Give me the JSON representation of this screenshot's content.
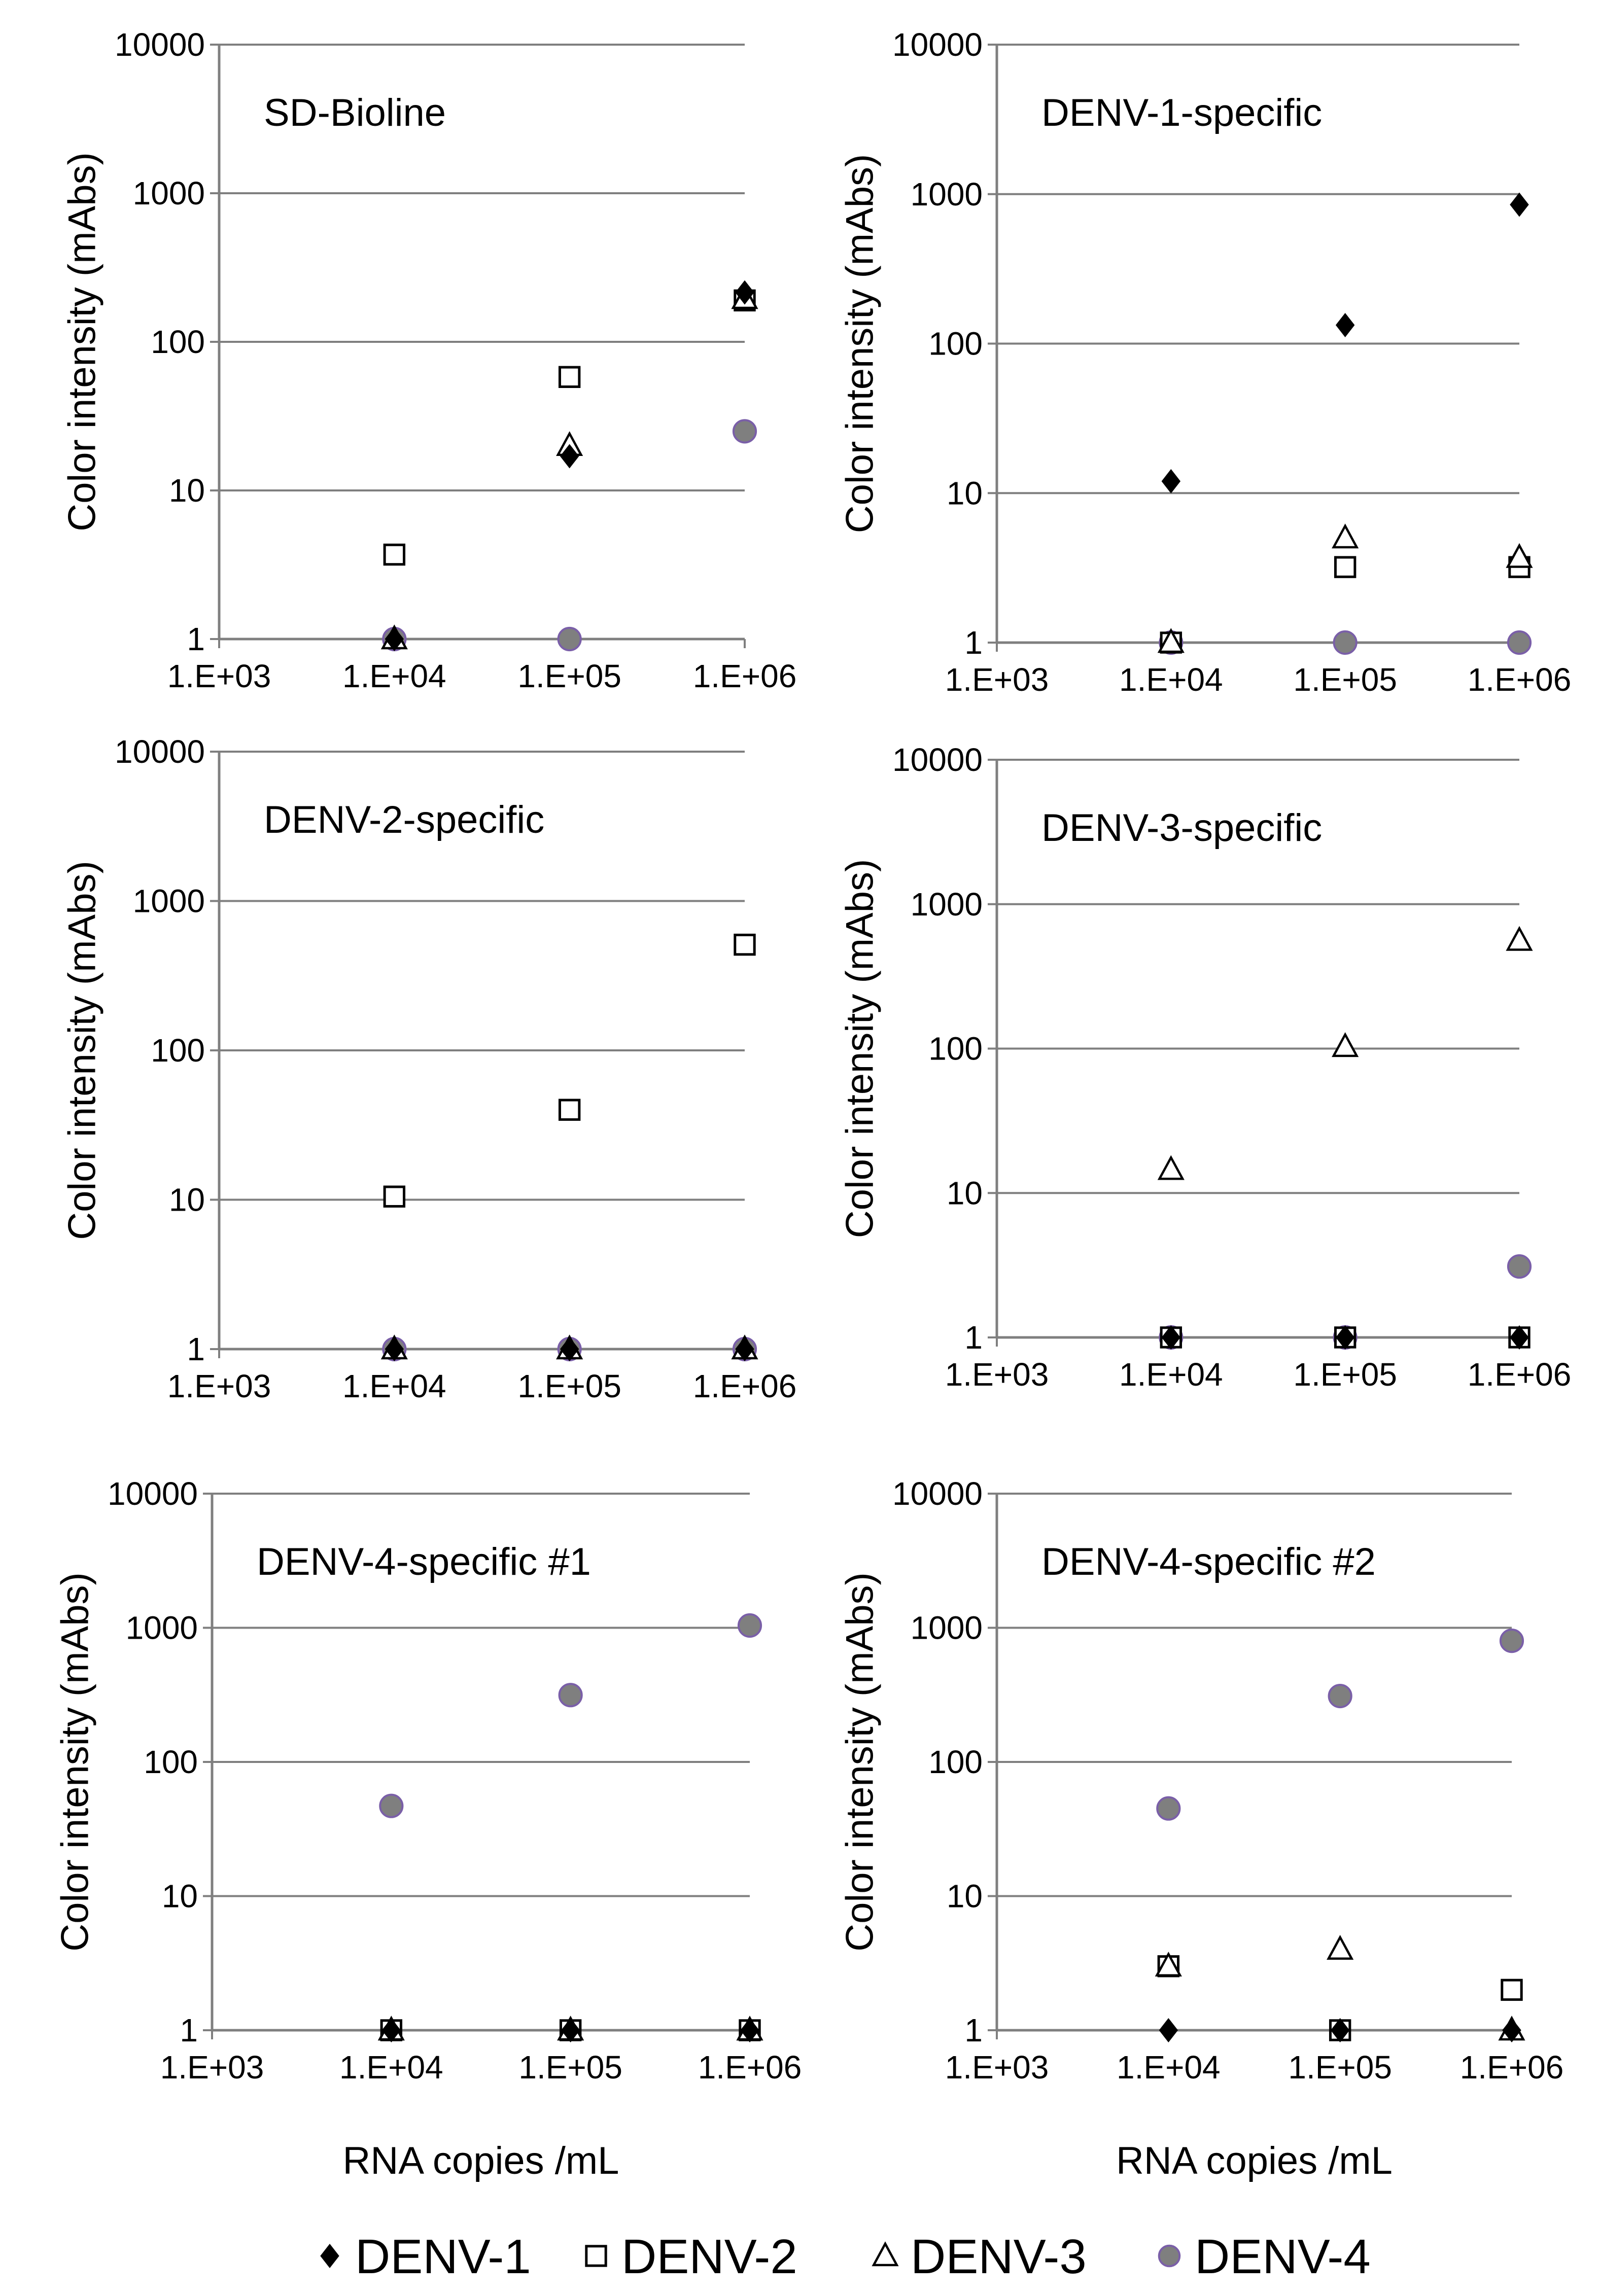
{
  "colors": {
    "axis": "#7f7f7f",
    "grid": "#7f7f7f",
    "denv4_fill": "#7f7f7f",
    "denv4_stroke": "#7a5fa8",
    "marker": "#000000"
  },
  "chart_data": [
    {
      "type": "scatter",
      "title": "SD-Bioline",
      "ylabel": "Color intensity (mAbs)",
      "xlabel": "",
      "xscale": "log",
      "yscale": "log",
      "xlim": [
        1000,
        1000000
      ],
      "ylim": [
        1,
        10000
      ],
      "x_ticks": [
        "1.E+03",
        "1.E+04",
        "1.E+05",
        "1.E+06"
      ],
      "y_ticks": [
        "1",
        "10",
        "100",
        "1000",
        "10000"
      ],
      "x": [
        10000,
        100000,
        1000000
      ],
      "series": [
        {
          "name": "DENV-1",
          "values": [
            1,
            17,
            215
          ]
        },
        {
          "name": "DENV-2",
          "values": [
            3.7,
            58,
            190
          ]
        },
        {
          "name": "DENV-3",
          "values": [
            1,
            20,
            195
          ]
        },
        {
          "name": "DENV-4",
          "values": [
            1,
            1,
            25
          ]
        }
      ]
    },
    {
      "type": "scatter",
      "title": "DENV-1-specific",
      "ylabel": "Color intensity (mAbs)",
      "xlabel": "",
      "xscale": "log",
      "yscale": "log",
      "xlim": [
        1000,
        1000000
      ],
      "ylim": [
        1,
        10000
      ],
      "x_ticks": [
        "1.E+03",
        "1.E+04",
        "1.E+05",
        "1.E+06"
      ],
      "y_ticks": [
        "1",
        "10",
        "100",
        "1000",
        "10000"
      ],
      "x": [
        10000,
        100000,
        1000000
      ],
      "series": [
        {
          "name": "DENV-1",
          "values": [
            12,
            133,
            850
          ]
        },
        {
          "name": "DENV-2",
          "values": [
            1,
            3.2,
            3.2
          ]
        },
        {
          "name": "DENV-3",
          "values": [
            1,
            5,
            3.7
          ]
        },
        {
          "name": "DENV-4",
          "values": [
            1,
            1,
            1
          ]
        }
      ]
    },
    {
      "type": "scatter",
      "title": "DENV-2-specific",
      "ylabel": "Color intensity (mAbs)",
      "xlabel": "",
      "xscale": "log",
      "yscale": "log",
      "xlim": [
        1000,
        1000000
      ],
      "ylim": [
        1,
        10000
      ],
      "x_ticks": [
        "1.E+03",
        "1.E+04",
        "1.E+05",
        "1.E+06"
      ],
      "y_ticks": [
        "1",
        "10",
        "100",
        "1000",
        "10000"
      ],
      "x": [
        10000,
        100000,
        1000000
      ],
      "series": [
        {
          "name": "DENV-1",
          "values": [
            1,
            1,
            1
          ]
        },
        {
          "name": "DENV-2",
          "values": [
            10.5,
            40,
            510
          ]
        },
        {
          "name": "DENV-3",
          "values": [
            1,
            1,
            1
          ]
        },
        {
          "name": "DENV-4",
          "values": [
            1,
            1,
            1
          ]
        }
      ]
    },
    {
      "type": "scatter",
      "title": "DENV-3-specific",
      "ylabel": "Color intensity (mAbs)",
      "xlabel": "",
      "xscale": "log",
      "yscale": "log",
      "xlim": [
        1000,
        1000000
      ],
      "ylim": [
        1,
        10000
      ],
      "x_ticks": [
        "1.E+03",
        "1.E+04",
        "1.E+05",
        "1.E+06"
      ],
      "y_ticks": [
        "1",
        "10",
        "100",
        "1000",
        "10000"
      ],
      "x": [
        10000,
        100000,
        1000000
      ],
      "series": [
        {
          "name": "DENV-1",
          "values": [
            1,
            1,
            1
          ]
        },
        {
          "name": "DENV-2",
          "values": [
            1,
            1,
            1
          ]
        },
        {
          "name": "DENV-3",
          "values": [
            14.5,
            103,
            560
          ]
        },
        {
          "name": "DENV-4",
          "values": [
            1,
            1,
            3.1
          ]
        }
      ]
    },
    {
      "type": "scatter",
      "title": "DENV-4-specific #1",
      "ylabel": "Color intensity (mAbs)",
      "xlabel": "RNA copies /mL",
      "xscale": "log",
      "yscale": "log",
      "xlim": [
        1000,
        1000000
      ],
      "ylim": [
        1,
        10000
      ],
      "x_ticks": [
        "1.E+03",
        "1.E+04",
        "1.E+05",
        "1.E+06"
      ],
      "y_ticks": [
        "1",
        "10",
        "100",
        "1000",
        "10000"
      ],
      "x": [
        10000,
        100000,
        1000000
      ],
      "series": [
        {
          "name": "DENV-1",
          "values": [
            1,
            1,
            1
          ]
        },
        {
          "name": "DENV-2",
          "values": [
            1,
            1,
            1
          ]
        },
        {
          "name": "DENV-3",
          "values": [
            1,
            1,
            1
          ]
        },
        {
          "name": "DENV-4",
          "values": [
            47,
            315,
            1040
          ]
        }
      ]
    },
    {
      "type": "scatter",
      "title": "DENV-4-specific #2",
      "ylabel": "Color intensity (mAbs)",
      "xlabel": "RNA copies /mL",
      "xscale": "log",
      "yscale": "log",
      "xlim": [
        1000,
        1000000
      ],
      "ylim": [
        1,
        10000
      ],
      "x_ticks": [
        "1.E+03",
        "1.E+04",
        "1.E+05",
        "1.E+06"
      ],
      "y_ticks": [
        "1",
        "10",
        "100",
        "1000",
        "10000"
      ],
      "x": [
        10000,
        100000,
        1000000
      ],
      "series": [
        {
          "name": "DENV-1",
          "values": [
            1,
            1,
            1
          ]
        },
        {
          "name": "DENV-2",
          "values": [
            3,
            1,
            2
          ]
        },
        {
          "name": "DENV-3",
          "values": [
            3,
            4,
            1
          ]
        },
        {
          "name": "DENV-4",
          "values": [
            45,
            310,
            800
          ]
        }
      ]
    }
  ],
  "legend": {
    "position": "bottom-center",
    "items": [
      {
        "name": "DENV-1",
        "marker": "diamond"
      },
      {
        "name": "DENV-2",
        "marker": "square"
      },
      {
        "name": "DENV-3",
        "marker": "triangle"
      },
      {
        "name": "DENV-4",
        "marker": "circle"
      }
    ]
  }
}
